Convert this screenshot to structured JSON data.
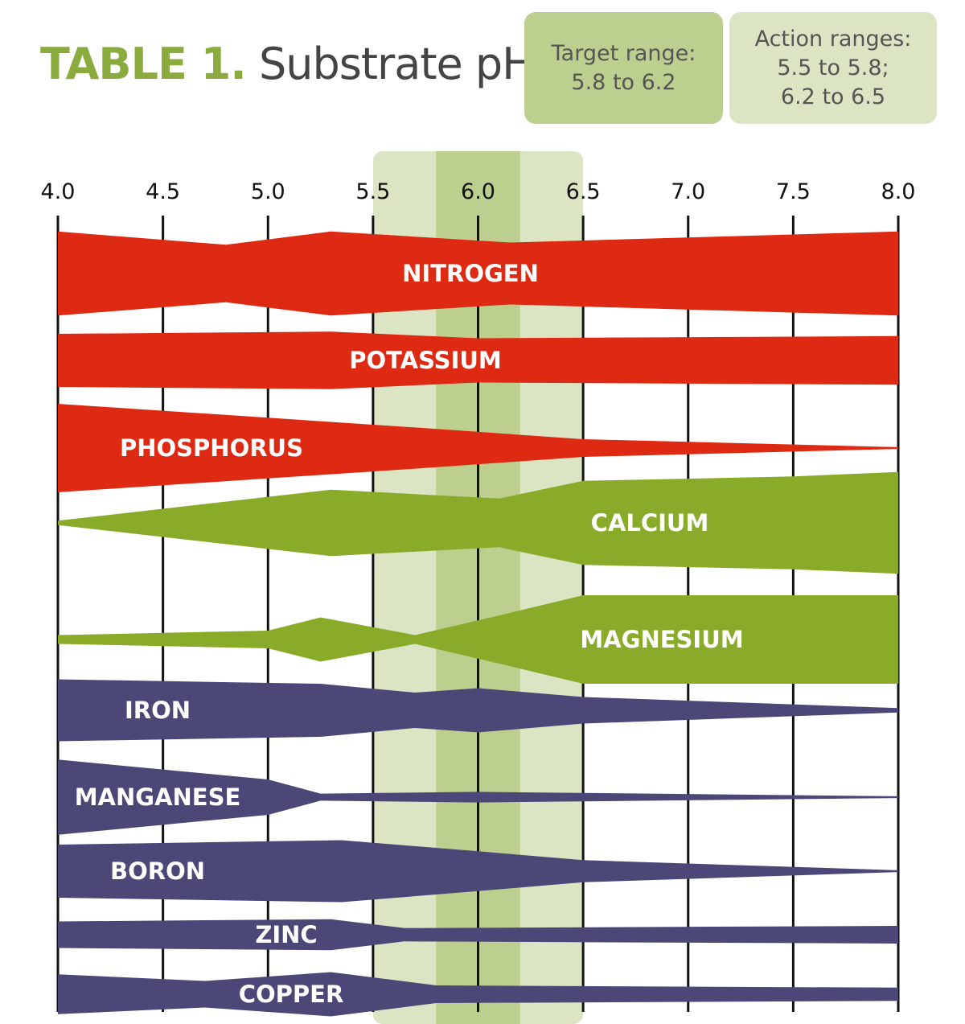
{
  "header": {
    "title_lead": "TABLE 1.",
    "title_main": "Substrate pH",
    "target_box": [
      "Target range:",
      "5.8 to 6.2"
    ],
    "action_box": [
      "Action ranges:",
      "5.5 to 5.8;",
      "6.2 to 6.5"
    ]
  },
  "colors": {
    "macronutrient": "#de2a13",
    "secondary": "#8aab2a",
    "micronutrient": "#4b4878",
    "target_band": "#bccf8e",
    "action_band": "#dce5c3"
  },
  "chart_data": {
    "type": "area",
    "title": "Substrate pH",
    "x_ticks": [
      "4.0",
      "4.5",
      "5.0",
      "5.5",
      "6.0",
      "6.5",
      "7.0",
      "7.5",
      "8.0"
    ],
    "xlim": [
      4.0,
      8.0
    ],
    "target_range": [
      5.8,
      6.2
    ],
    "action_ranges": [
      [
        5.5,
        5.8
      ],
      [
        6.2,
        6.5
      ]
    ],
    "series": [
      {
        "name": "NITROGEN",
        "group": "macronutrient",
        "x": [
          4.0,
          4.8,
          5.3,
          6.15,
          8.0
        ],
        "width": [
          0.95,
          0.65,
          0.95,
          0.7,
          0.95
        ]
      },
      {
        "name": "POTASSIUM",
        "group": "macronutrient",
        "x": [
          4.0,
          5.3,
          6.0,
          8.0
        ],
        "width": [
          0.6,
          0.65,
          0.5,
          0.55
        ]
      },
      {
        "name": "PHOSPHORUS",
        "group": "macronutrient",
        "x": [
          4.0,
          5.75,
          6.5,
          8.0
        ],
        "width": [
          1.0,
          0.45,
          0.2,
          0.02
        ]
      },
      {
        "name": "CALCIUM",
        "group": "secondary",
        "x": [
          4.0,
          5.3,
          6.1,
          6.5,
          7.5,
          8.0
        ],
        "width": [
          0.05,
          0.75,
          0.55,
          0.95,
          1.05,
          1.15
        ]
      },
      {
        "name": "MAGNESIUM",
        "group": "secondary",
        "x": [
          4.0,
          5.0,
          5.25,
          5.7,
          6.15,
          6.5,
          8.0
        ],
        "width": [
          0.1,
          0.2,
          0.5,
          0.1,
          0.6,
          1.0,
          1.0
        ]
      },
      {
        "name": "IRON",
        "group": "micronutrient",
        "x": [
          4.0,
          5.25,
          5.7,
          6.0,
          6.5,
          8.0
        ],
        "width": [
          0.7,
          0.6,
          0.4,
          0.5,
          0.3,
          0.05
        ]
      },
      {
        "name": "MANGANESE",
        "group": "micronutrient",
        "x": [
          4.0,
          5.0,
          5.25,
          6.0,
          8.0
        ],
        "width": [
          0.85,
          0.4,
          0.08,
          0.12,
          0.02
        ]
      },
      {
        "name": "BORON",
        "group": "micronutrient",
        "x": [
          4.0,
          5.35,
          6.0,
          6.5,
          8.0
        ],
        "width": [
          0.6,
          0.7,
          0.45,
          0.25,
          0.02
        ]
      },
      {
        "name": "ZINC",
        "group": "micronutrient",
        "x": [
          4.0,
          5.3,
          5.65,
          8.0
        ],
        "width": [
          0.3,
          0.35,
          0.15,
          0.2
        ]
      },
      {
        "name": "COPPER",
        "group": "micronutrient",
        "x": [
          4.0,
          4.7,
          5.3,
          5.8,
          8.0
        ],
        "width": [
          0.45,
          0.3,
          0.5,
          0.2,
          0.15
        ]
      }
    ]
  }
}
